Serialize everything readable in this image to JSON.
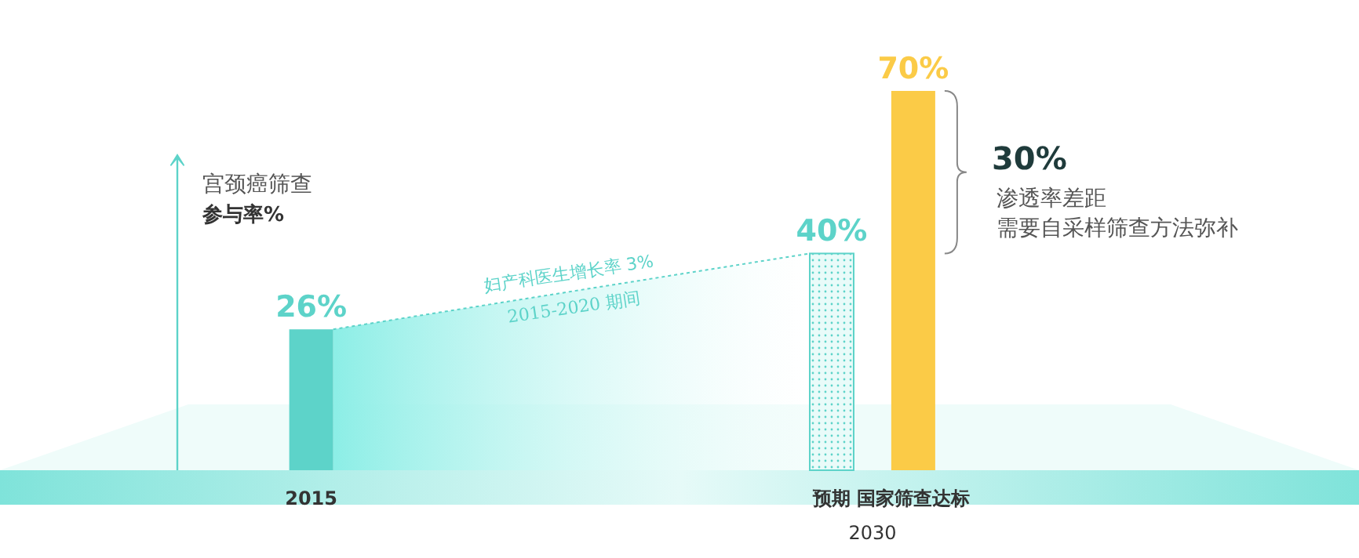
{
  "chart_data": {
    "type": "bar",
    "categories": [
      "2015",
      "预期",
      "国家筛查达标"
    ],
    "values": [
      26,
      40,
      70
    ],
    "colors": [
      "#5dd3c9",
      "#e9fbf9",
      "#fbcb47"
    ],
    "value_labels": [
      "26%",
      "40%",
      "70%"
    ],
    "annotations": [
      "宫颈癌筛查",
      "参与率%",
      "2030",
      "妇产科医生增长率 3%",
      "2015-2020 期间",
      "30%",
      "渗透率差距",
      "需要自采样筛查方法弥补"
    ]
  }
}
